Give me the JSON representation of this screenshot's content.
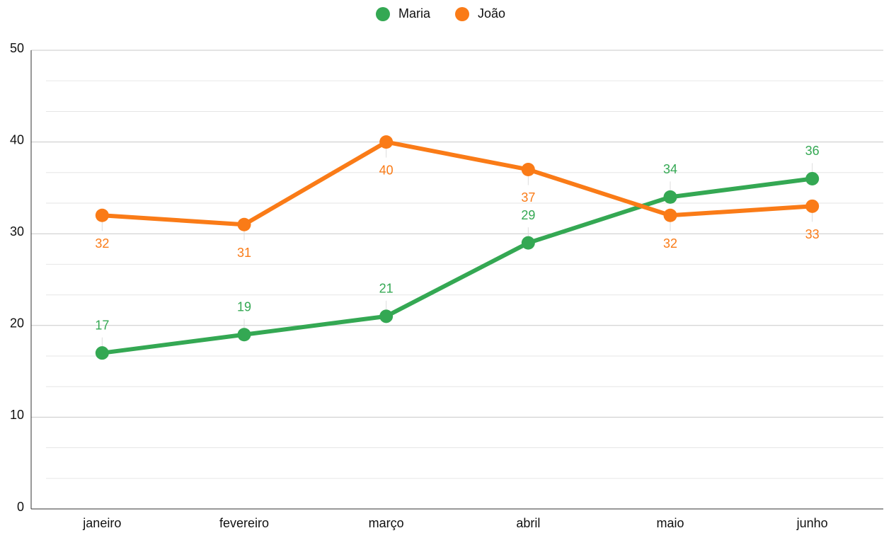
{
  "chart_data": {
    "type": "line",
    "categories": [
      "janeiro",
      "fevereiro",
      "março",
      "abril",
      "maio",
      "junho"
    ],
    "series": [
      {
        "name": "Maria",
        "color": "#34a853",
        "values": [
          17,
          19,
          21,
          29,
          34,
          36
        ]
      },
      {
        "name": "João",
        "color": "#fa7b17",
        "values": [
          32,
          31,
          40,
          37,
          32,
          33
        ]
      }
    ],
    "ylim": [
      0,
      50
    ],
    "yticks": [
      0,
      10,
      20,
      30,
      40,
      50
    ],
    "minor_yticks": [
      3.33,
      6.67,
      13.33,
      16.67,
      23.33,
      26.67,
      33.33,
      36.67,
      43.33,
      46.67
    ],
    "grid": true,
    "legend": "top"
  }
}
